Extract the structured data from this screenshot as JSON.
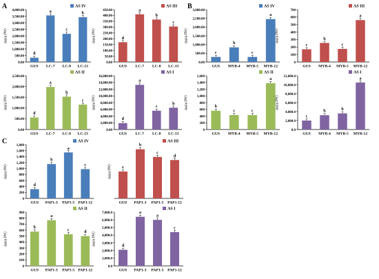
{
  "figure": {
    "panel_letters": [
      "A",
      "B",
      "C"
    ],
    "y_axis_label": "(μg/g DW)"
  },
  "colors": {
    "AS IV": "#4a7ebb",
    "AS III": "#c0504d",
    "AS II": "#9bbb59",
    "AS I": "#8064a2"
  },
  "chart_data": [
    {
      "type": "bar",
      "categories": [
        "GUS",
        "LC-7",
        "LC-8",
        "LC-13"
      ],
      "values": [
        330,
        3560,
        2150,
        3420
      ],
      "letters": [
        "d",
        "a",
        "c",
        "b"
      ],
      "series": [
        {
          "name": "AS IV"
        }
      ],
      "ylim": [
        0,
        4000
      ],
      "yticks": [
        "0.00",
        "500.00",
        "1,000.00",
        "1,500.00",
        "2,000.00",
        "2,500.00",
        "3,000.00",
        "3,500.00",
        "4,000.00"
      ]
    },
    {
      "type": "bar",
      "categories": [
        "GUS",
        "LC-7",
        "LC-8",
        "LC-13"
      ],
      "values": [
        170,
        410,
        365,
        305
      ],
      "letters": [
        "d",
        "a",
        "b",
        "c"
      ],
      "series": [
        {
          "name": "AS III"
        }
      ],
      "ylim": [
        0,
        450
      ],
      "yticks": [
        "0.00",
        "50.00",
        "100.00",
        "150.00",
        "200.00",
        "250.00",
        "300.00",
        "350.00",
        "400.00",
        "450.00"
      ]
    },
    {
      "type": "bar",
      "categories": [
        "GUS",
        "MYB-4",
        "MYB-5",
        "MYB-12"
      ],
      "values": [
        290,
        840,
        290,
        2460
      ],
      "letters": [
        "c",
        "b",
        "c",
        "a"
      ],
      "series": [
        {
          "name": "AS IV"
        }
      ],
      "ylim": [
        0,
        3000
      ],
      "yticks": [
        "0.00",
        "500.00",
        "1,000.00",
        "1,500.00",
        "2,000.00",
        "2,500.00",
        "3,000.00"
      ]
    },
    {
      "type": "bar",
      "categories": [
        "GUS",
        "MYB-4",
        "MYB-5",
        "MYB-12"
      ],
      "values": [
        170,
        255,
        175,
        560
      ],
      "letters": [
        "c",
        "b",
        "c",
        "a"
      ],
      "series": [
        {
          "name": "AS III"
        }
      ],
      "ylim": [
        0,
        700
      ],
      "yticks": [
        "0",
        "100",
        "200",
        "300",
        "400",
        "500",
        "600",
        "700"
      ]
    },
    {
      "type": "bar",
      "categories": [
        "GUS",
        "LC-7",
        "LC-8",
        "LC-13"
      ],
      "values": [
        560,
        1980,
        1530,
        1160
      ],
      "letters": [
        "d",
        "a",
        "b",
        "c"
      ],
      "series": [
        {
          "name": "AS II"
        }
      ],
      "ylim": [
        0,
        2500
      ],
      "yticks": [
        "0.00",
        "500.00",
        "1,000.00",
        "1,500.00",
        "2,000.00",
        "2,500.00"
      ]
    },
    {
      "type": "bar",
      "categories": [
        "GUS",
        "LC-7",
        "LC-8",
        "LC-13"
      ],
      "values": [
        1900,
        13300,
        5600,
        6500
      ],
      "letters": [
        "d",
        "a",
        "c",
        "b"
      ],
      "series": [
        {
          "name": "AS I"
        }
      ],
      "ylim": [
        0,
        16000
      ],
      "yticks": [
        "0.00",
        "2,000.00",
        "4,000.00",
        "6,000.00",
        "8,000.00",
        "10,000.00",
        "12,000.00",
        "14,000.00",
        "16,000.00"
      ]
    },
    {
      "type": "bar",
      "categories": [
        "GUS",
        "MYB-4",
        "MYB-5",
        "MYB-12"
      ],
      "values": [
        560,
        430,
        430,
        1380
      ],
      "letters": [
        "b",
        "c",
        "c",
        "a"
      ],
      "series": [
        {
          "name": "AS II"
        }
      ],
      "ylim": [
        0,
        1600
      ],
      "yticks": [
        "0",
        "200",
        "400",
        "600",
        "800",
        "1,000",
        "1,200",
        "1,400",
        "1,600"
      ]
    },
    {
      "type": "bar",
      "categories": [
        "GUS",
        "MYB-4",
        "MYB-5",
        "MYB-12"
      ],
      "values": [
        2000,
        3200,
        3600,
        10500
      ],
      "letters": [
        "c",
        "b",
        "b",
        "a"
      ],
      "series": [
        {
          "name": "AS I"
        }
      ],
      "ylim": [
        0,
        12000
      ],
      "yticks": [
        "0.0",
        "2,000.0",
        "4,000.0",
        "6,000.0",
        "8,000.0",
        "10,000.0",
        "12,000.0"
      ]
    },
    {
      "type": "bar",
      "categories": [
        "GUS",
        "PAP1-3",
        "PAP1-5",
        "PAP1-12"
      ],
      "values": [
        310,
        1150,
        1540,
        980
      ],
      "letters": [
        "d",
        "b",
        "a",
        "c"
      ],
      "series": [
        {
          "name": "AS IV"
        }
      ],
      "ylim": [
        0,
        1800
      ],
      "yticks": [
        "0",
        "200",
        "400",
        "600",
        "800",
        "1,000",
        "1,200",
        "1,400",
        "1,600",
        "1,800"
      ]
    },
    {
      "type": "bar",
      "categories": [
        "GUS",
        "PAP1-3",
        "PAP1-5",
        "PAP1-12"
      ],
      "values": [
        175,
        320,
        270,
        250
      ],
      "letters": [
        "e",
        "b",
        "c",
        "d"
      ],
      "series": [
        {
          "name": "AS III"
        }
      ],
      "ylim": [
        0,
        350
      ],
      "yticks": [],
      "no_y_axis": true
    },
    {
      "type": "bar",
      "categories": [
        "GUS",
        "PAP1-3",
        "PAP1-5",
        "PAP1-12"
      ],
      "values": [
        575,
        765,
        530,
        500
      ],
      "letters": [
        "b",
        "a",
        "c",
        "d"
      ],
      "series": [
        {
          "name": "AS II"
        }
      ],
      "ylim": [
        0,
        900
      ],
      "yticks": [
        "0",
        "100",
        "200",
        "300",
        "400",
        "500",
        "600",
        "700",
        "800",
        "900"
      ]
    },
    {
      "type": "bar",
      "categories": [
        "GUS",
        "PAP1-3",
        "PAP1-5",
        "PAP1-12"
      ],
      "values": [
        2100,
        6400,
        6000,
        4400
      ],
      "letters": [
        "d",
        "a",
        "a",
        "c"
      ],
      "series": [
        {
          "name": "AS I"
        }
      ],
      "ylim": [
        0,
        7000
      ],
      "yticks": [
        "0.0",
        "1,000.0",
        "2,000.0",
        "3,000.0",
        "4,000.0",
        "5,000.0",
        "6,000.0",
        "7,000.0"
      ]
    }
  ]
}
